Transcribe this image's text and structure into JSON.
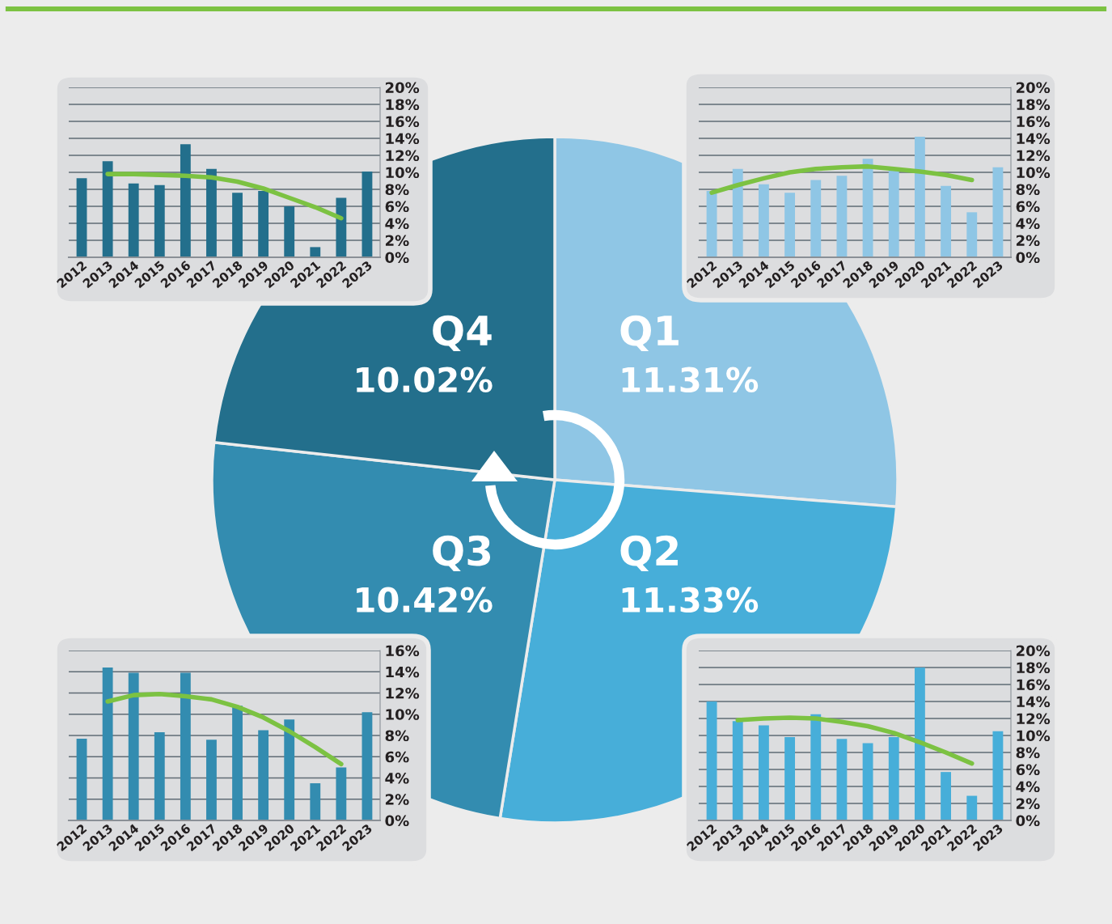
{
  "chart_data": [
    {
      "type": "bar",
      "categories": [
        "2012",
        "2013",
        "2014",
        "2015",
        "2016",
        "2017",
        "2018",
        "2019",
        "2020",
        "2021",
        "2022",
        "2023"
      ],
      "series": [
        {
          "type": "bar",
          "color": "#236f8c",
          "values": [
            9.3,
            11.3,
            8.7,
            8.5,
            13.3,
            10.4,
            7.6,
            7.8,
            6.0,
            1.2,
            7.0,
            10.1
          ]
        },
        {
          "type": "line",
          "color": "#7cc242",
          "values": [
            null,
            9.8,
            9.8,
            9.7,
            9.6,
            9.4,
            8.9,
            8.1,
            7.0,
            5.9,
            4.6,
            null
          ]
        }
      ],
      "ylim": [
        0,
        20
      ],
      "yticks": [
        {
          "value": 0,
          "label": "0%"
        },
        {
          "value": 2,
          "label": "2%"
        },
        {
          "value": 4,
          "label": "4%"
        },
        {
          "value": 6,
          "label": "6%"
        },
        {
          "value": 8,
          "label": "8%"
        },
        {
          "value": 10,
          "label": "10%"
        },
        {
          "value": 12,
          "label": "12%"
        },
        {
          "value": 14,
          "label": "14%"
        },
        {
          "value": 16,
          "label": "16%"
        },
        {
          "value": 18,
          "label": "18%"
        },
        {
          "value": 20,
          "label": "20%"
        }
      ],
      "grid": "y",
      "marker": "none"
    },
    {
      "type": "bar",
      "categories": [
        "2012",
        "2013",
        "2014",
        "2015",
        "2016",
        "2017",
        "2018",
        "2019",
        "2020",
        "2021",
        "2022",
        "2023"
      ],
      "series": [
        {
          "type": "bar",
          "color": "#8fc6e5",
          "values": [
            7.8,
            10.4,
            8.6,
            7.6,
            9.1,
            9.6,
            11.6,
            10.3,
            14.2,
            8.4,
            5.3,
            10.6
          ]
        },
        {
          "type": "line",
          "color": "#7cc242",
          "values": [
            7.6,
            8.5,
            9.3,
            10.0,
            10.4,
            10.6,
            10.7,
            10.4,
            10.1,
            9.7,
            9.1,
            null
          ]
        }
      ],
      "ylim": [
        0,
        20
      ],
      "yticks": [
        {
          "value": 0,
          "label": "0%"
        },
        {
          "value": 2,
          "label": "2%"
        },
        {
          "value": 4,
          "label": "4%"
        },
        {
          "value": 6,
          "label": "6%"
        },
        {
          "value": 8,
          "label": "8%"
        },
        {
          "value": 10,
          "label": "10%"
        },
        {
          "value": 12,
          "label": "12%"
        },
        {
          "value": 14,
          "label": "14%"
        },
        {
          "value": 16,
          "label": "16%"
        },
        {
          "value": 18,
          "label": "18%"
        },
        {
          "value": 20,
          "label": "20%"
        }
      ],
      "grid": "y",
      "marker": "none"
    },
    {
      "type": "pie",
      "categories": [
        "Q1",
        "Q2",
        "Q3",
        "Q4"
      ],
      "values": [
        11.31,
        11.33,
        10.42,
        10.02
      ],
      "value_labels": [
        "11.31%",
        "11.33%",
        "10.42%",
        "10.02%"
      ],
      "colors": [
        "#8fc6e5",
        "#47aed9",
        "#338cb0",
        "#236f8c"
      ]
    },
    {
      "type": "bar",
      "categories": [
        "2012",
        "2013",
        "2014",
        "2015",
        "2016",
        "2017",
        "2018",
        "2019",
        "2020",
        "2021",
        "2022",
        "2023"
      ],
      "series": [
        {
          "type": "bar",
          "color": "#338cb0",
          "values": [
            7.7,
            14.4,
            13.9,
            8.3,
            13.9,
            7.6,
            10.8,
            8.5,
            9.5,
            3.5,
            5.0,
            10.2
          ]
        },
        {
          "type": "line",
          "color": "#7cc242",
          "values": [
            null,
            11.2,
            11.8,
            11.9,
            11.7,
            11.4,
            10.7,
            9.7,
            8.4,
            6.9,
            5.3,
            null
          ]
        }
      ],
      "ylim": [
        0,
        16
      ],
      "yticks": [
        {
          "value": 0,
          "label": "0%"
        },
        {
          "value": 2,
          "label": "2%"
        },
        {
          "value": 4,
          "label": "4%"
        },
        {
          "value": 6,
          "label": "6%"
        },
        {
          "value": 8,
          "label": "8%"
        },
        {
          "value": 10,
          "label": "10%"
        },
        {
          "value": 12,
          "label": "12%"
        },
        {
          "value": 14,
          "label": "14%"
        },
        {
          "value": 16,
          "label": "16%"
        }
      ],
      "grid": "y",
      "marker": "none"
    },
    {
      "type": "bar",
      "categories": [
        "2012",
        "2013",
        "2014",
        "2015",
        "2016",
        "2017",
        "2018",
        "2019",
        "2020",
        "2021",
        "2022",
        "2023"
      ],
      "series": [
        {
          "type": "bar",
          "color": "#47aed9",
          "values": [
            14.0,
            11.7,
            11.2,
            9.8,
            12.5,
            9.6,
            9.1,
            9.8,
            18.0,
            5.7,
            2.9,
            10.5
          ]
        },
        {
          "type": "line",
          "color": "#7cc242",
          "values": [
            null,
            11.8,
            12.0,
            12.1,
            12.0,
            11.6,
            11.1,
            10.3,
            9.2,
            8.0,
            6.7,
            null
          ]
        }
      ],
      "ylim": [
        0,
        20
      ],
      "yticks": [
        {
          "value": 0,
          "label": "0%"
        },
        {
          "value": 2,
          "label": "2%"
        },
        {
          "value": 4,
          "label": "4%"
        },
        {
          "value": 6,
          "label": "6%"
        },
        {
          "value": 8,
          "label": "8%"
        },
        {
          "value": 10,
          "label": "10%"
        },
        {
          "value": 12,
          "label": "12%"
        },
        {
          "value": 14,
          "label": "14%"
        },
        {
          "value": 16,
          "label": "16%"
        },
        {
          "value": 18,
          "label": "18%"
        },
        {
          "value": 20,
          "label": "20%"
        }
      ],
      "grid": "y",
      "marker": "none"
    }
  ]
}
